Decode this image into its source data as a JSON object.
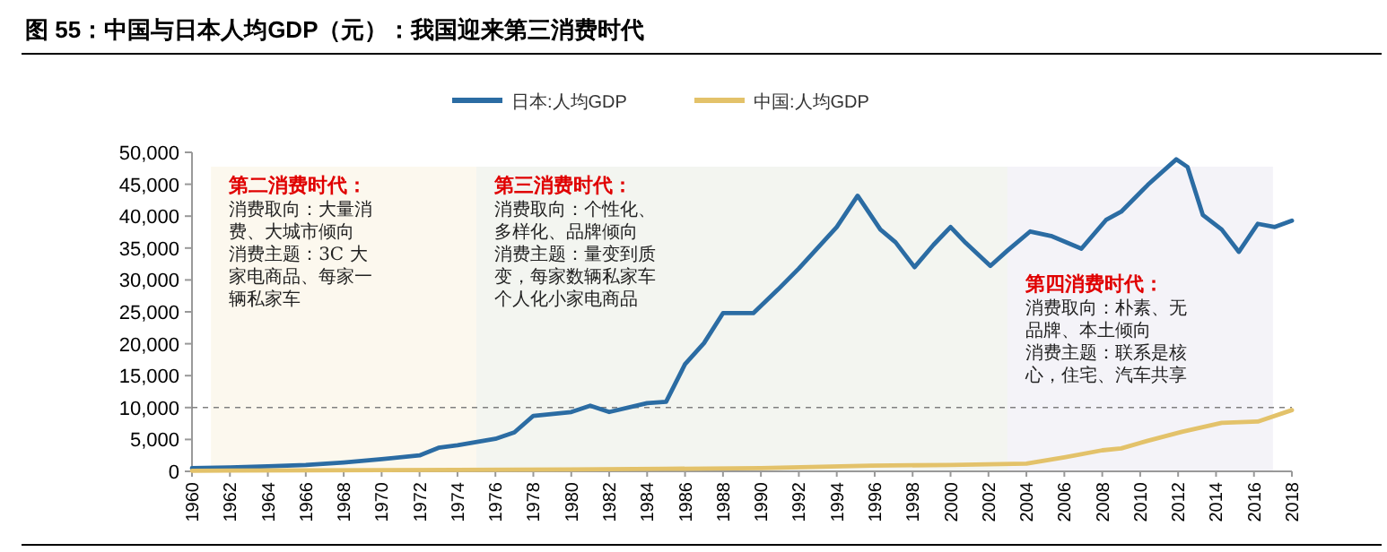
{
  "chart_data": {
    "type": "line",
    "title": "图 55：中国与日本人均GDP（元）：我国迎来第三消费时代",
    "series": [
      {
        "name": "日本:人均GDP",
        "color": "#2b6ca3",
        "x": [
          1960,
          1962,
          1964,
          1966,
          1968,
          1970,
          1972,
          1973,
          1974,
          1976,
          1977,
          1978,
          1980,
          1981,
          1982,
          1984,
          1985,
          1986,
          1987,
          1988,
          1989.6,
          1990.9,
          1992,
          1994,
          1995.1,
          1996.3,
          1997.1,
          1998.1,
          1999.1,
          2000,
          2000.8,
          2002.1,
          2003,
          2004.2,
          2005.3,
          2006.9,
          2008.2,
          2009,
          2010.4,
          2011.9,
          2012.5,
          2013.3,
          2014.3,
          2015.2,
          2016.2,
          2017.1,
          2018
        ],
        "values": [
          500,
          600,
          800,
          1000,
          1400,
          1900,
          2500,
          3700,
          4100,
          5100,
          6100,
          8700,
          9300,
          10300,
          9300,
          10700,
          10900,
          16800,
          20100,
          24800,
          24800,
          28500,
          31800,
          38300,
          43200,
          37900,
          35900,
          32000,
          35500,
          38300,
          35800,
          32200,
          34600,
          37600,
          36900,
          34900,
          39400,
          40700,
          44900,
          48900,
          47700,
          40200,
          37900,
          34400,
          38800,
          38300,
          39300
        ]
      },
      {
        "name": "中国:人均GDP",
        "color": "#e3c26a",
        "x": [
          1960,
          1970,
          1980,
          1985,
          1990,
          1995.8,
          2000,
          2004,
          2006,
          2008,
          2009,
          2010.4,
          2012.2,
          2014.3,
          2016.2,
          2018
        ],
        "values": [
          100,
          200,
          300,
          400,
          500,
          900,
          1000,
          1200,
          2200,
          3300,
          3600,
          4800,
          6200,
          7600,
          7800,
          9600
        ]
      }
    ],
    "xlim": [
      1960,
      2018
    ],
    "xticks": [
      1960,
      1962,
      1964,
      1966,
      1968,
      1970,
      1972,
      1974,
      1976,
      1978,
      1980,
      1982,
      1984,
      1986,
      1988,
      1990,
      1992,
      1994,
      1996,
      1998,
      2000,
      2002,
      2004,
      2006,
      2008,
      2010,
      2012,
      2014,
      2016,
      2018
    ],
    "ylim": [
      0,
      50000
    ],
    "yticks": [
      0,
      {
        "value": 5000,
        "label": "5,000"
      },
      {
        "value": 10000,
        "label": "10,000"
      },
      {
        "value": 15000,
        "label": "15,000"
      },
      {
        "value": 20000,
        "label": "20,000"
      },
      {
        "value": 25000,
        "label": "25,000"
      },
      {
        "value": 30000,
        "label": "30,000"
      },
      {
        "value": 35000,
        "label": "35,000"
      },
      {
        "value": 40000,
        "label": "40,000"
      },
      {
        "value": 45000,
        "label": "45,000"
      },
      {
        "value": 50000,
        "label": "50,000"
      }
    ],
    "bands": [
      {
        "axis": "x",
        "from": 1961,
        "to": 1975,
        "label": "第二消费时代：",
        "color": "#fcf8ee"
      },
      {
        "axis": "x",
        "from": 1975,
        "to": 2003,
        "label": "第三消费时代：",
        "color": "#f3f5f0"
      },
      {
        "axis": "x",
        "from": 2003,
        "to": 2017,
        "label": "第四消费时代：",
        "color": "#f4f3f8"
      }
    ],
    "annotations": [
      "消费取向：大量消费、大城市倾向",
      "消费主题：3C 大家电商品、每家一辆私家车",
      "消费取向：个性化、多样化、品牌倾向",
      "消费主题：量变到质变，每家数辆私家车个人化小家电商品",
      "消费取向：朴素、无品牌、本土倾向",
      "消费主题：联系是核心，住宅、汽车共享"
    ],
    "ref_lines": [
      {
        "axis": "y",
        "value": 10000,
        "color": "#808080",
        "line_style": "dashed"
      }
    ],
    "legend": "top",
    "grid": false,
    "marker": "none",
    "line_style": "solid"
  }
}
